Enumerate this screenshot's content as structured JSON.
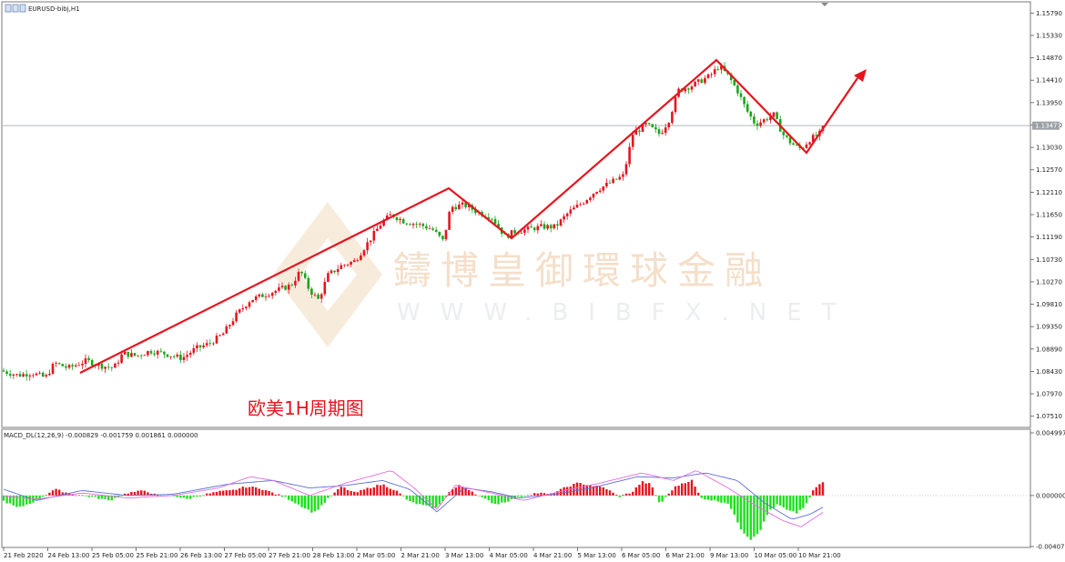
{
  "window": {
    "symbol_label": "EURUSD-bibj,H1",
    "indicator_label": "MACD_DL(12,26,9) -0.000829 -0.001759 0.001861 0.000000"
  },
  "annotation": {
    "caption": "欧美1H周期图"
  },
  "watermark": {
    "cn": "鑄博皇御環球金融",
    "en": "WWW.BIBFX.NET"
  },
  "price_axis": {
    "ticks": [
      "1.15790",
      "1.15330",
      "1.14870",
      "1.14410",
      "1.13950",
      "1.13490",
      "1.13030",
      "1.12570",
      "1.12110",
      "1.11650",
      "1.11190",
      "1.10730",
      "1.10270",
      "1.09810",
      "1.09350",
      "1.08890",
      "1.08430",
      "1.07970",
      "1.07510"
    ],
    "current_price": "1.13477",
    "min": 1.0728,
    "max": 1.1602
  },
  "macd_axis": {
    "ticks": [
      "0.004997",
      "0.000000",
      "-0.004073"
    ],
    "max": 0.004997,
    "min": -0.004073
  },
  "time_axis": {
    "labels": [
      "21 Feb 2020",
      "24 Feb 13:00",
      "25 Feb 05:00",
      "25 Feb 21:00",
      "26 Feb 13:00",
      "27 Feb 05:00",
      "27 Feb 21:00",
      "28 Feb 13:00",
      "2 Mar 05:00",
      "2 Mar 21:00",
      "3 Mar 13:00",
      "4 Mar 05:00",
      "4 Mar 21:00",
      "5 Mar 13:00",
      "6 Mar 05:00",
      "6 Mar 21:00",
      "9 Mar 13:00",
      "10 Mar 05:00",
      "10 Mar 21:00"
    ]
  },
  "colors": {
    "bull": "#e6141e",
    "bear": "#19a619",
    "trendline": "#e6141e",
    "signal_line": "#5b6fd6",
    "macd_line": "#e36be0",
    "axis_line": "#555555"
  },
  "chart_data": {
    "type": "candlestick",
    "trend_points": [
      {
        "time": "24 Feb 2020",
        "price": 1.083
      },
      {
        "time": "3 Mar 13:00",
        "price": 1.1215
      },
      {
        "time": "4 Mar 05:00",
        "price": 1.11
      },
      {
        "time": "9 Mar 13:00",
        "price": 1.148
      },
      {
        "time": "10 Mar 21:00",
        "price": 1.129
      },
      {
        "time": "projection",
        "price": 1.143
      }
    ],
    "price_anchors": [
      [
        0,
        1.0845
      ],
      [
        20,
        1.0835
      ],
      [
        35,
        1.084
      ],
      [
        50,
        1.083
      ],
      [
        60,
        1.086
      ],
      [
        75,
        1.085
      ],
      [
        95,
        1.0865
      ],
      [
        110,
        1.0855
      ],
      [
        125,
        1.085
      ],
      [
        135,
        1.088
      ],
      [
        150,
        1.0875
      ],
      [
        165,
        1.0885
      ],
      [
        180,
        1.088
      ],
      [
        200,
        1.087
      ],
      [
        215,
        1.089
      ],
      [
        230,
        1.09
      ],
      [
        245,
        1.092
      ],
      [
        260,
        1.096
      ],
      [
        275,
        1.099
      ],
      [
        290,
        1.1
      ],
      [
        305,
        1.101
      ],
      [
        320,
        1.102
      ],
      [
        330,
        1.105
      ],
      [
        340,
        1.101
      ],
      [
        350,
        1.099
      ],
      [
        360,
        1.104
      ],
      [
        375,
        1.106
      ],
      [
        390,
        1.107
      ],
      [
        405,
        1.111
      ],
      [
        420,
        1.115
      ],
      [
        430,
        1.1165
      ],
      [
        445,
        1.115
      ],
      [
        460,
        1.1145
      ],
      [
        475,
        1.1135
      ],
      [
        487,
        1.111
      ],
      [
        495,
        1.118
      ],
      [
        510,
        1.1185
      ],
      [
        525,
        1.117
      ],
      [
        540,
        1.116
      ],
      [
        555,
        1.112
      ],
      [
        565,
        1.113
      ],
      [
        580,
        1.1135
      ],
      [
        595,
        1.114
      ],
      [
        610,
        1.114
      ],
      [
        625,
        1.117
      ],
      [
        640,
        1.119
      ],
      [
        655,
        1.1215
      ],
      [
        670,
        1.123
      ],
      [
        685,
        1.1245
      ],
      [
        695,
        1.133
      ],
      [
        710,
        1.135
      ],
      [
        725,
        1.133
      ],
      [
        735,
        1.136
      ],
      [
        745,
        1.142
      ],
      [
        760,
        1.143
      ],
      [
        770,
        1.144
      ],
      [
        780,
        1.145
      ],
      [
        790,
        1.147
      ],
      [
        800,
        1.145
      ],
      [
        810,
        1.142
      ],
      [
        820,
        1.138
      ],
      [
        830,
        1.135
      ],
      [
        840,
        1.136
      ],
      [
        850,
        1.137
      ],
      [
        860,
        1.133
      ],
      [
        870,
        1.131
      ],
      [
        880,
        1.13
      ],
      [
        890,
        1.132
      ],
      [
        900,
        1.133
      ],
      [
        905,
        1.1345
      ]
    ],
    "macd_anchors": [
      [
        0,
        -0.0003
      ],
      [
        20,
        -0.001
      ],
      [
        40,
        -0.0004
      ],
      [
        60,
        0.0005
      ],
      [
        80,
        0.0001
      ],
      [
        100,
        -0.0001
      ],
      [
        120,
        -0.0004
      ],
      [
        140,
        0.0002
      ],
      [
        160,
        0.0004
      ],
      [
        175,
        -0.0001
      ],
      [
        190,
        0.0
      ],
      [
        205,
        -0.0003
      ],
      [
        220,
        0.0
      ],
      [
        240,
        0.0003
      ],
      [
        255,
        0.0004
      ],
      [
        270,
        0.0007
      ],
      [
        285,
        0.0006
      ],
      [
        300,
        0.0002
      ],
      [
        315,
        -0.0002
      ],
      [
        330,
        -0.0008
      ],
      [
        345,
        -0.0014
      ],
      [
        360,
        -0.0003
      ],
      [
        375,
        0.0007
      ],
      [
        390,
        0.0002
      ],
      [
        405,
        0.0006
      ],
      [
        420,
        0.0009
      ],
      [
        435,
        0.0004
      ],
      [
        450,
        -0.0005
      ],
      [
        465,
        -0.0008
      ],
      [
        480,
        -0.001
      ],
      [
        495,
        0.0004
      ],
      [
        505,
        0.0008
      ],
      [
        515,
        0.0005
      ],
      [
        530,
        -0.0002
      ],
      [
        545,
        -0.0007
      ],
      [
        560,
        -0.0004
      ],
      [
        575,
        0.0
      ],
      [
        590,
        0.0002
      ],
      [
        605,
        0.0001
      ],
      [
        620,
        0.0006
      ],
      [
        635,
        0.001
      ],
      [
        650,
        0.0008
      ],
      [
        665,
        0.0006
      ],
      [
        680,
        -0.0001
      ],
      [
        695,
        0.0003
      ],
      [
        705,
        0.0011
      ],
      [
        715,
        0.0009
      ],
      [
        725,
        -0.0007
      ],
      [
        740,
        0.0006
      ],
      [
        750,
        0.001
      ],
      [
        760,
        0.0012
      ],
      [
        770,
        -0.0002
      ],
      [
        785,
        -0.0004
      ],
      [
        800,
        -0.0006
      ],
      [
        815,
        -0.0028
      ],
      [
        825,
        -0.0035
      ],
      [
        835,
        -0.0028
      ],
      [
        845,
        -0.0012
      ],
      [
        855,
        -0.0007
      ],
      [
        865,
        -0.0012
      ],
      [
        875,
        -0.0014
      ],
      [
        885,
        -0.0008
      ],
      [
        895,
        0.0006
      ],
      [
        905,
        0.0011
      ]
    ],
    "signal_anchors": [
      [
        0,
        0.0006
      ],
      [
        40,
        -0.0004
      ],
      [
        90,
        0.0004
      ],
      [
        140,
        0.0
      ],
      [
        190,
        0.0001
      ],
      [
        250,
        0.0009
      ],
      [
        300,
        0.0012
      ],
      [
        340,
        0.0006
      ],
      [
        380,
        0.0008
      ],
      [
        420,
        0.0012
      ],
      [
        450,
        0.0005
      ],
      [
        480,
        -0.0013
      ],
      [
        510,
        0.0006
      ],
      [
        540,
        0.0003
      ],
      [
        570,
        -0.0002
      ],
      [
        610,
        0.0001
      ],
      [
        650,
        0.0006
      ],
      [
        700,
        0.0015
      ],
      [
        740,
        0.0014
      ],
      [
        775,
        0.0018
      ],
      [
        810,
        0.0012
      ],
      [
        840,
        -0.0006
      ],
      [
        870,
        -0.0019
      ],
      [
        890,
        -0.0015
      ],
      [
        905,
        -0.0009
      ]
    ],
    "macdline_anchors": [
      [
        0,
        0.0
      ],
      [
        40,
        -0.0003
      ],
      [
        90,
        0.0002
      ],
      [
        140,
        -0.0002
      ],
      [
        190,
        0.0
      ],
      [
        240,
        0.0006
      ],
      [
        275,
        0.0015
      ],
      [
        300,
        0.0012
      ],
      [
        340,
        0.0
      ],
      [
        380,
        0.001
      ],
      [
        430,
        0.002
      ],
      [
        455,
        0.0006
      ],
      [
        480,
        -0.0011
      ],
      [
        500,
        0.0008
      ],
      [
        540,
        0.0002
      ],
      [
        575,
        -0.0004
      ],
      [
        620,
        0.0004
      ],
      [
        660,
        0.001
      ],
      [
        705,
        0.0018
      ],
      [
        740,
        0.0012
      ],
      [
        765,
        0.002
      ],
      [
        800,
        0.0006
      ],
      [
        830,
        -0.0008
      ],
      [
        860,
        -0.002
      ],
      [
        880,
        -0.0025
      ],
      [
        905,
        -0.0013
      ]
    ]
  }
}
